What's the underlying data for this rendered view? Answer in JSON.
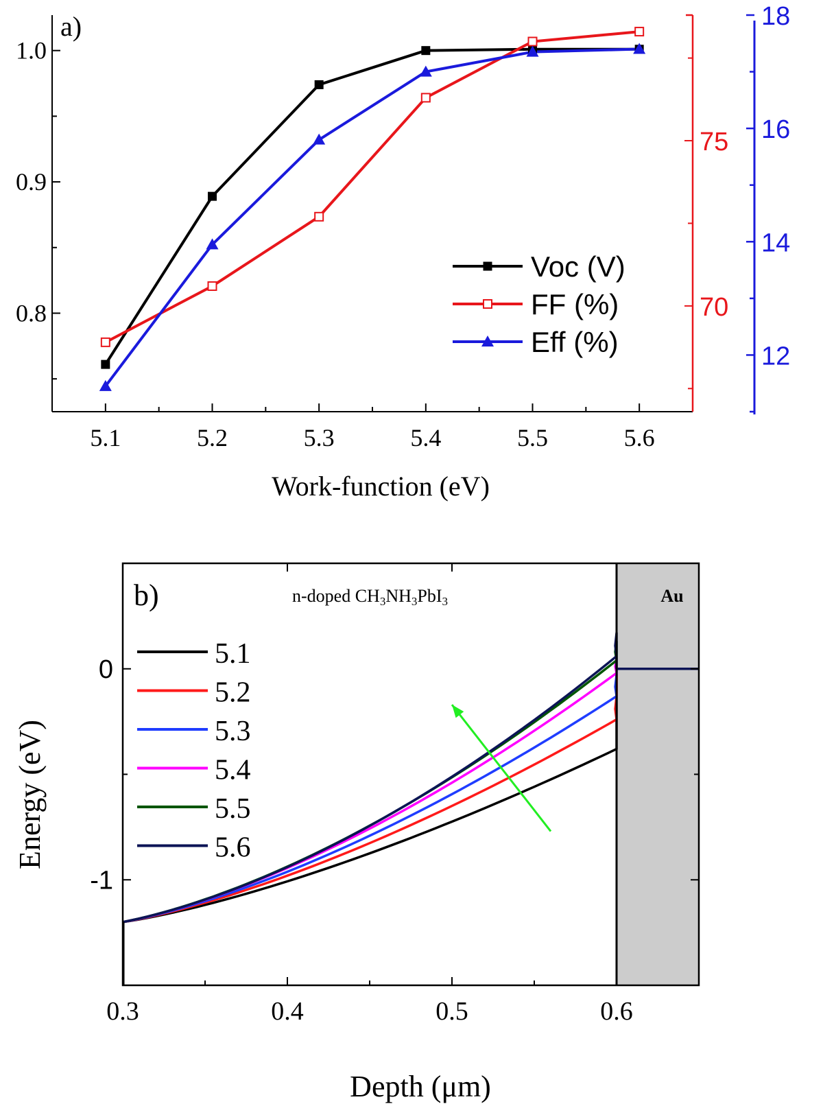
{
  "chart_data": [
    {
      "panel_label": "a)",
      "type": "line",
      "xlabel": "Work-function (eV)",
      "x": [
        5.1,
        5.2,
        5.3,
        5.4,
        5.5,
        5.6
      ],
      "x_ticks": [
        "5.1",
        "5.2",
        "5.3",
        "5.4",
        "5.5",
        "5.6"
      ],
      "xlim": [
        5.05,
        5.65
      ],
      "axes": {
        "left": {
          "ylim": [
            0.725,
            1.027
          ],
          "ticks": [
            "0.8",
            "0.9",
            "1.0"
          ],
          "color": "#000000"
        },
        "red": {
          "ylim": [
            66.8,
            78.8
          ],
          "ticks": [
            "70",
            "75"
          ],
          "color": "#e8161b"
        },
        "blue": {
          "ylim": [
            11.0,
            18.0
          ],
          "ticks": [
            "12",
            "14",
            "16",
            "18"
          ],
          "color": "#1a1adc"
        }
      },
      "series": [
        {
          "name": "Voc (V)",
          "axis": "left",
          "color": "#000000",
          "marker": "square-filled",
          "values": [
            0.761,
            0.889,
            0.974,
            1.0,
            1.001,
            1.001
          ]
        },
        {
          "name": "FF (%)",
          "axis": "red",
          "color": "#e8161b",
          "marker": "square-open",
          "values": [
            68.9,
            70.6,
            72.7,
            76.3,
            78.0,
            78.3
          ]
        },
        {
          "name": "Eff (%)",
          "axis": "blue",
          "color": "#1a1adc",
          "marker": "triangle-filled",
          "values": [
            11.45,
            13.95,
            15.8,
            17.0,
            17.35,
            17.4
          ]
        }
      ],
      "legend_position": "center-right"
    },
    {
      "panel_label": "b)",
      "type": "line",
      "xlabel": "Depth (μm)",
      "ylabel": "Energy (eV)",
      "x_ticks": [
        "0.3",
        "0.4",
        "0.5",
        "0.6"
      ],
      "y_ticks": [
        "-1",
        "0"
      ],
      "xlim": [
        0.3,
        0.65
      ],
      "ylim": [
        -1.5,
        0.5
      ],
      "region_labels": {
        "perovskite": "n-doped CH3NH3PbI3",
        "metal": "Au"
      },
      "metal_region": [
        0.6,
        0.65
      ],
      "series": [
        {
          "name": "5.1",
          "color": "#000000",
          "start": [
            0.3,
            -1.2
          ],
          "end": [
            0.6,
            -0.38
          ],
          "spike_top": -0.38
        },
        {
          "name": "5.2",
          "color": "#ff1a1a",
          "start": [
            0.3,
            -1.2
          ],
          "end": [
            0.6,
            -0.24
          ],
          "spike_top": -0.13
        },
        {
          "name": "5.3",
          "color": "#1f3dff",
          "start": [
            0.3,
            -1.2
          ],
          "end": [
            0.6,
            -0.13
          ],
          "spike_top": -0.03
        },
        {
          "name": "5.4",
          "color": "#ff00ff",
          "start": [
            0.3,
            -1.2
          ],
          "end": [
            0.6,
            -0.02
          ],
          "spike_top": 0.05
        },
        {
          "name": "5.5",
          "color": "#005500",
          "start": [
            0.3,
            -1.2
          ],
          "end": [
            0.6,
            0.04
          ],
          "spike_top": 0.13
        },
        {
          "name": "5.6",
          "color": "#0c1456",
          "start": [
            0.3,
            -1.2
          ],
          "end": [
            0.6,
            0.06
          ],
          "spike_top": 0.17
        }
      ],
      "metal_level": 0,
      "trend_arrow": {
        "from": [
          0.56,
          -0.77
        ],
        "to": [
          0.5,
          -0.17
        ],
        "color": "#22ee22"
      },
      "legend_position": "top-left"
    }
  ]
}
